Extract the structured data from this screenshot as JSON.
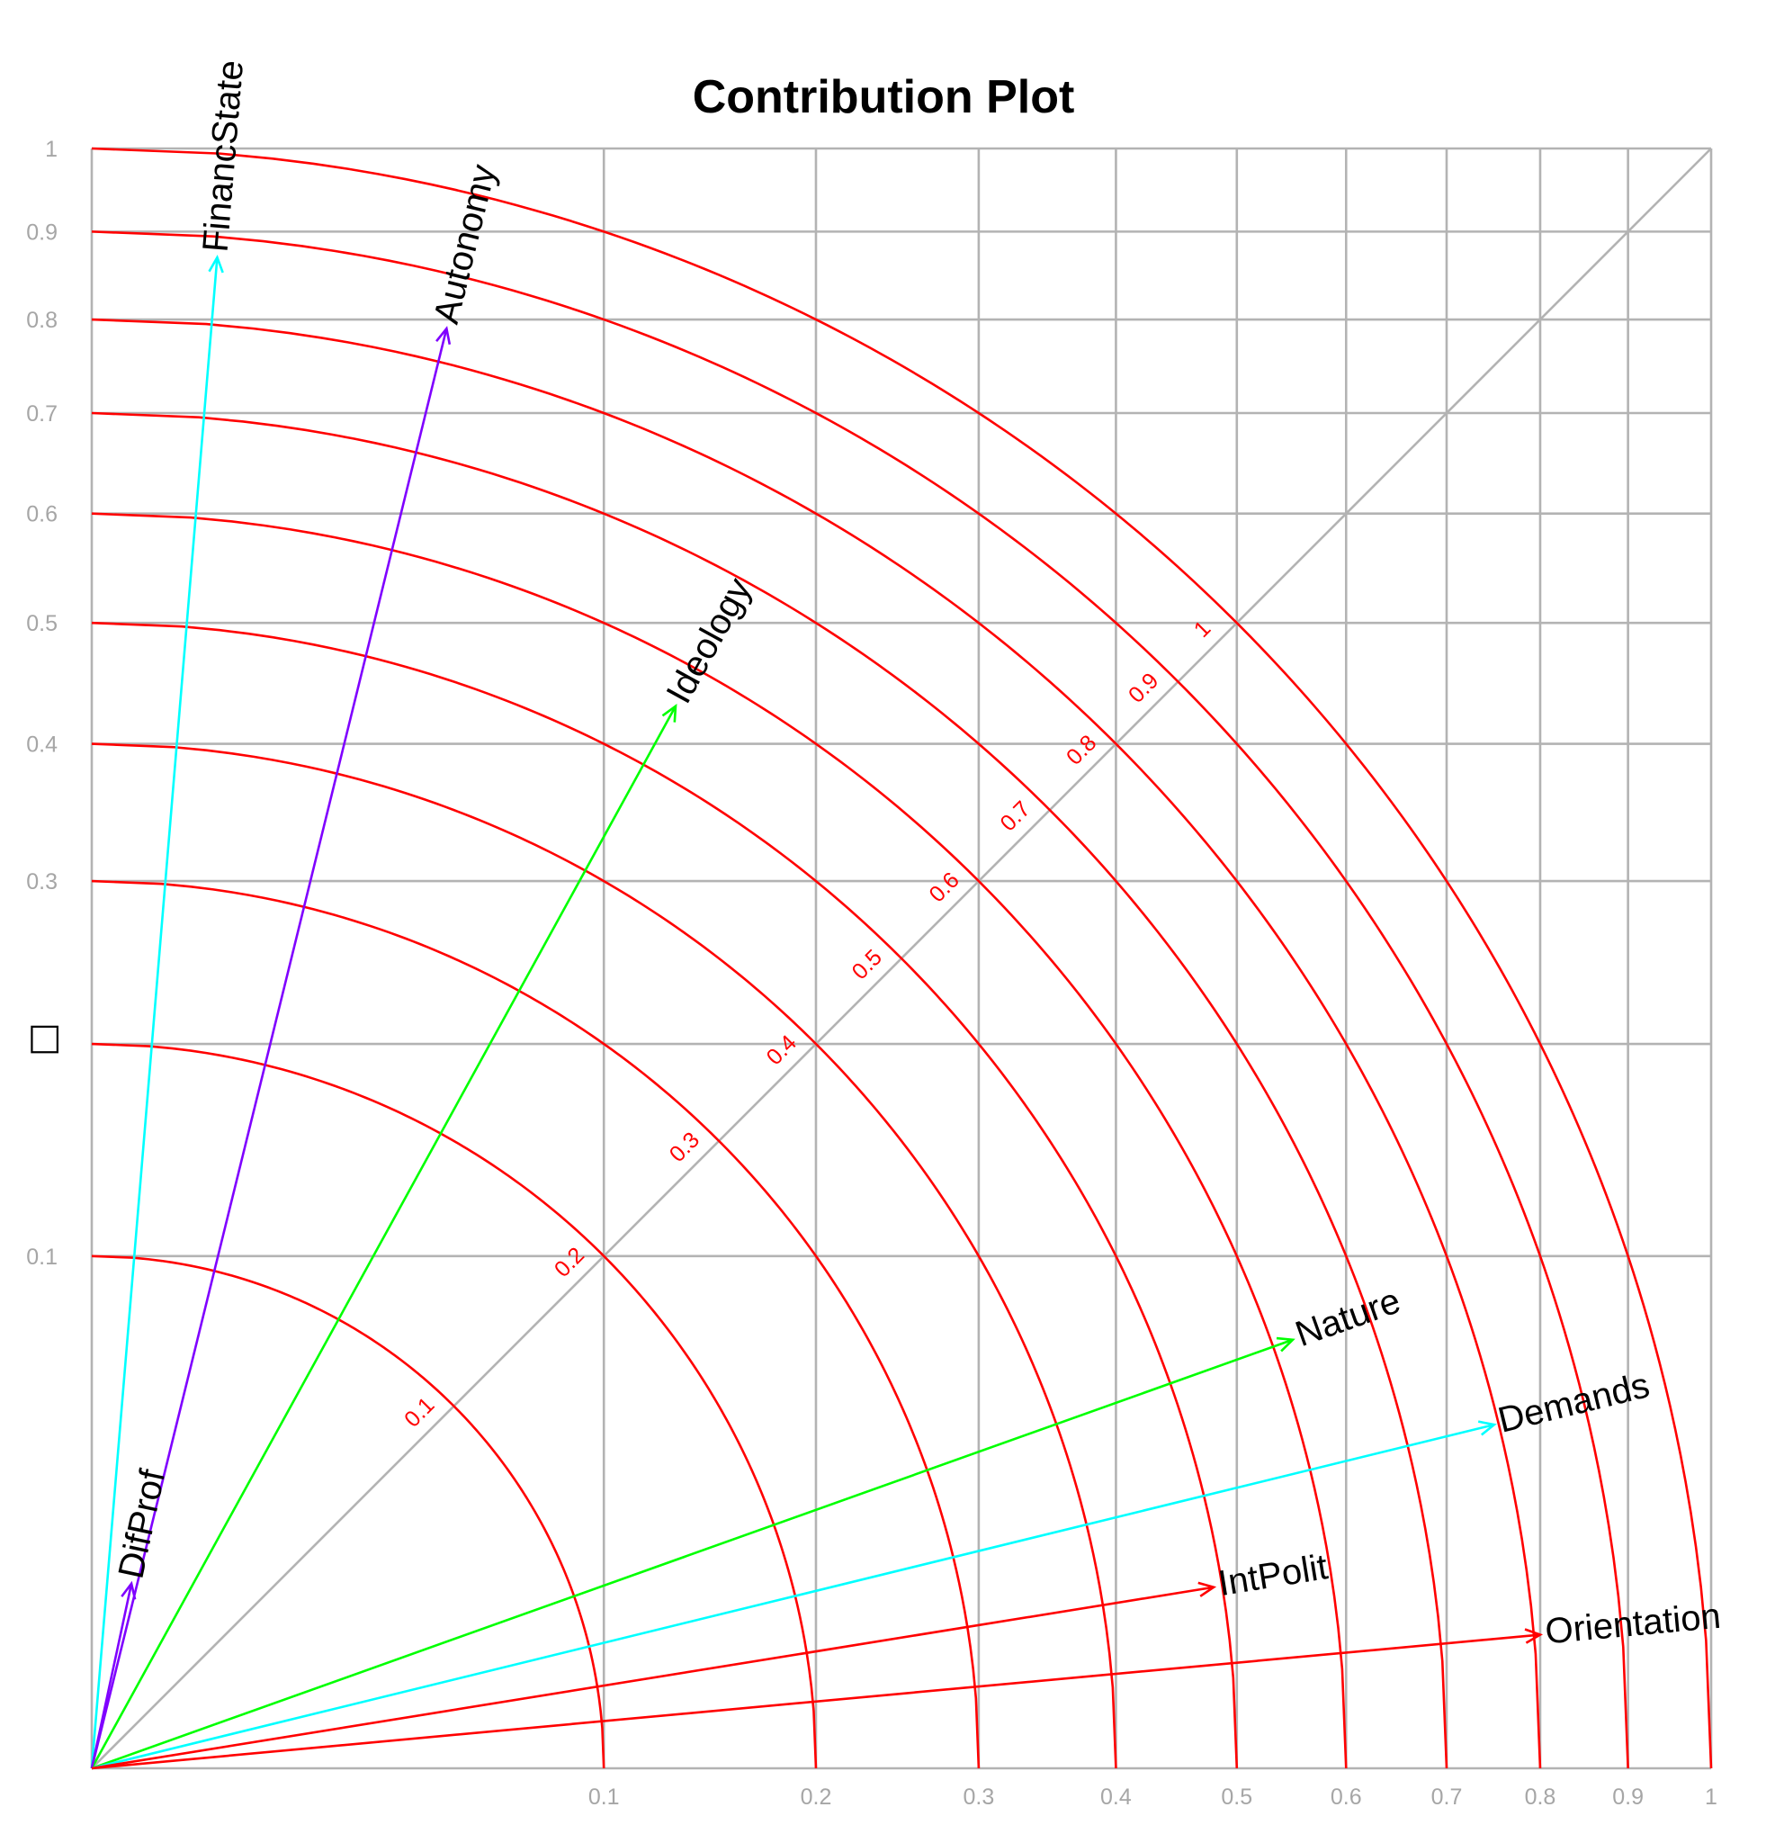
{
  "chart_data": {
    "type": "scatter",
    "title": "Contribution Plot",
    "xlabel": "",
    "ylabel": "□",
    "xlim": [
      0,
      1
    ],
    "ylim": [
      0,
      1
    ],
    "x_ticks": [
      0.1,
      0.2,
      0.3,
      0.4,
      0.5,
      0.6,
      0.7,
      0.8,
      0.9,
      1
    ],
    "x_tick_labels": [
      "0.1",
      "0.2",
      "0.3",
      "0.4",
      "0.5",
      "0.6",
      "0.7",
      "0.8",
      "0.9",
      "1"
    ],
    "y_ticks": [
      0.1,
      0.3,
      0.4,
      0.5,
      0.6,
      0.7,
      0.8,
      0.9,
      1
    ],
    "y_tick_labels": [
      "0.1",
      "0.3",
      "0.4",
      "0.5",
      "0.6",
      "0.7",
      "0.8",
      "0.9",
      "1"
    ],
    "horizontal_gridlines": [
      0.1,
      0.2,
      0.3,
      0.4,
      0.5,
      0.6,
      0.7,
      0.8,
      0.9,
      1
    ],
    "vertical_gridlines": [
      0.1,
      0.2,
      0.3,
      0.4,
      0.5,
      0.6,
      0.7,
      0.8,
      0.9,
      1
    ],
    "axis_scale": "sqrt",
    "grid": true,
    "diagonal_reference_line": true,
    "contribution_circles": [
      0.1,
      0.2,
      0.3,
      0.4,
      0.5,
      0.6,
      0.7,
      0.8,
      0.9,
      1
    ],
    "circle_labels": [
      "0.1",
      "0.2",
      "0.3",
      "0.4",
      "0.5",
      "0.6",
      "0.7",
      "0.8",
      "0.9",
      "1"
    ],
    "circle_color": "#ff0000",
    "grid_color": "#b3b3b3",
    "variables": [
      {
        "name": "FinancState",
        "x": 0.006,
        "y": 0.87,
        "color": "#00ffff"
      },
      {
        "name": "Autonomy",
        "x": 0.048,
        "y": 0.79,
        "color": "#7f00ff"
      },
      {
        "name": "Ideology",
        "x": 0.13,
        "y": 0.43,
        "color": "#00ff00"
      },
      {
        "name": "DifProf",
        "x": 0.0006,
        "y": 0.013,
        "color": "#7f00ff"
      },
      {
        "name": "Nature",
        "x": 0.55,
        "y": 0.07,
        "color": "#00ff00"
      },
      {
        "name": "Demands",
        "x": 0.75,
        "y": 0.045,
        "color": "#00ffff"
      },
      {
        "name": "IntPolit",
        "x": 0.48,
        "y": 0.0125,
        "color": "#ff0000"
      },
      {
        "name": "Orientation",
        "x": 0.8,
        "y": 0.0068,
        "color": "#ff0000"
      }
    ]
  }
}
